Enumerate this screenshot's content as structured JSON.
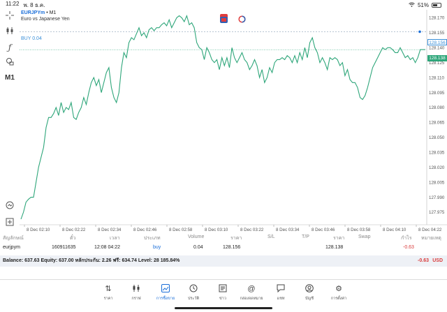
{
  "status": {
    "time": "11:22",
    "date": "พ. 8 ธ.ค.",
    "battery": "51%",
    "battery_level": 0.51
  },
  "toolbar": {
    "crosshair_icon": "crosshair-icon",
    "indicators_icon": "candles-icon",
    "draw_icon": "function-icon",
    "objects_icon": "shapes-icon",
    "timeframe": "M1",
    "zoom_icon": "zoom-icon",
    "add_icon": "add-icon"
  },
  "chart": {
    "symbol": "EURJPYm",
    "timeframe_label": "• M1",
    "description": "Euro vs Japanese Yen",
    "buy_label": "BUY 0.04",
    "ask_price": "128.156",
    "bid_price": "128.138",
    "colors": {
      "line": "#2ea67a",
      "ask": "#3a8fd8",
      "bid": "#2ea67a"
    }
  },
  "chart_data": {
    "type": "line",
    "x_ticks": [
      "8 Dec 02:10",
      "8 Dec 02:22",
      "8 Dec 02:34",
      "8 Dec 02:46",
      "8 Dec 02:58",
      "8 Dec 03:10",
      "8 Dec 03:22",
      "8 Dec 03:34",
      "8 Dec 03:46",
      "8 Dec 03:58",
      "8 Dec 04:10",
      "8 Dec 04:22"
    ],
    "y_ticks": [
      "128.170",
      "128.155",
      "128.140",
      "128.125",
      "128.110",
      "128.095",
      "128.080",
      "128.065",
      "128.050",
      "128.035",
      "128.020",
      "128.005",
      "127.990",
      "127.975"
    ],
    "ylim": [
      127.968,
      128.178
    ],
    "grid": false,
    "series": [
      {
        "values": [
          127.968,
          127.975,
          127.985,
          127.988,
          127.99,
          127.99,
          128.005,
          128.02,
          128.03,
          128.04,
          128.06,
          128.07,
          128.07,
          128.074,
          128.08,
          128.072,
          128.085,
          128.075,
          128.08,
          128.078,
          128.085,
          128.07,
          128.068,
          128.075,
          128.08,
          128.09,
          128.083,
          128.095,
          128.105,
          128.11,
          128.102,
          128.108,
          128.095,
          128.105,
          128.115,
          128.12,
          128.1,
          128.09,
          128.085,
          128.095,
          128.12,
          128.135,
          128.13,
          128.145,
          128.15,
          128.148,
          128.154,
          128.16,
          128.152,
          128.155,
          128.15,
          128.158,
          128.16,
          128.157,
          128.16,
          128.16,
          128.163,
          128.165,
          128.162,
          128.168,
          128.16,
          128.165,
          128.17,
          128.172,
          128.17,
          128.166,
          128.172,
          128.163,
          128.165,
          128.16,
          128.145,
          128.14,
          128.138,
          128.128,
          128.14,
          128.135,
          128.128,
          128.125,
          128.128,
          128.118,
          128.13,
          128.122,
          128.13,
          128.12,
          128.14,
          128.13,
          128.125,
          128.13,
          128.135,
          128.128,
          128.125,
          128.118,
          128.122,
          128.128,
          128.122,
          128.11,
          128.118,
          128.105,
          128.11,
          128.12,
          128.115,
          128.125,
          128.128,
          128.128,
          128.13,
          128.128,
          128.132,
          128.13,
          128.125,
          128.132,
          128.125,
          128.135,
          128.128,
          128.14,
          128.13,
          128.145,
          128.15,
          128.14,
          128.135,
          128.125,
          128.13,
          128.125,
          128.118,
          128.13,
          128.128,
          128.13,
          128.128,
          128.122,
          128.125,
          128.112,
          128.118,
          128.108,
          128.105,
          128.105,
          128.1,
          128.09,
          128.088,
          128.092,
          128.1,
          128.11,
          128.12,
          128.125,
          128.13,
          128.135,
          128.14,
          128.138,
          128.14,
          128.14,
          128.138,
          128.135,
          128.135,
          128.14,
          128.135,
          128.13,
          128.132,
          128.128,
          128.13,
          128.125,
          128.13,
          128.138,
          128.138,
          128.138
        ]
      }
    ]
  },
  "table": {
    "headers": [
      "สัญลักษณ์",
      "ตั๋ว",
      "เวลา",
      "ประเภท",
      "Volume",
      "ราคา",
      "S/L",
      "T/P",
      "ราคา",
      "Swap",
      "กำไร",
      "หมายเหตุ"
    ],
    "rows": [
      [
        "eurjpym",
        "160911635",
        "12:08 04:22",
        "buy",
        "0.04",
        "128.156",
        "",
        "",
        "128.138",
        "",
        "-0.63",
        ""
      ]
    ]
  },
  "balance": {
    "text": "Balance: 637.63 Equity: 637.00 หลักประกัน: 2.26 ฟรี: 634.74 Level: 28 185.84%",
    "profit": "-0.63",
    "currency": "USD"
  },
  "nav": {
    "items": [
      {
        "label": "ราคา",
        "icon": "quotes-icon"
      },
      {
        "label": "กราฟ",
        "icon": "chart-icon"
      },
      {
        "label": "การซื้อขาย",
        "icon": "trade-icon"
      },
      {
        "label": "ประวัติ",
        "icon": "history-icon"
      },
      {
        "label": "ข่าว",
        "icon": "news-icon"
      },
      {
        "label": "กล่องจดหมาย",
        "icon": "mailbox-icon"
      },
      {
        "label": "แชท",
        "icon": "chat-icon"
      },
      {
        "label": "บัญชี",
        "icon": "account-icon"
      },
      {
        "label": "การตั้งค่า",
        "icon": "settings-icon"
      }
    ],
    "active_index": 2
  }
}
